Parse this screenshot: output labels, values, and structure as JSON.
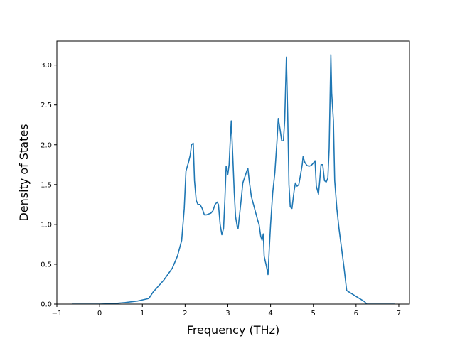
{
  "chart_data": {
    "type": "line",
    "title": "",
    "xlabel": "Frequency (THz)",
    "ylabel": "Density of States",
    "xlim": [
      -1,
      7.25
    ],
    "ylim": [
      0,
      3.3
    ],
    "x_ticks": [
      -1,
      0,
      1,
      2,
      3,
      4,
      5,
      6,
      7
    ],
    "x_tick_labels": [
      "−1",
      "0",
      "1",
      "2",
      "3",
      "4",
      "5",
      "6",
      "7"
    ],
    "y_ticks": [
      0.0,
      0.5,
      1.0,
      1.5,
      2.0,
      2.5,
      3.0
    ],
    "y_tick_labels": [
      "0.0",
      "0.5",
      "1.0",
      "1.5",
      "2.0",
      "2.5",
      "3.0"
    ],
    "grid": false,
    "legend": "none",
    "series": [
      {
        "color": "#1f77b4",
        "points": [
          [
            -0.65,
            0.0
          ],
          [
            0.0,
            0.0
          ],
          [
            0.3,
            0.005
          ],
          [
            0.6,
            0.02
          ],
          [
            0.9,
            0.04
          ],
          [
            1.15,
            0.07
          ],
          [
            1.25,
            0.15
          ],
          [
            1.5,
            0.3
          ],
          [
            1.7,
            0.45
          ],
          [
            1.82,
            0.6
          ],
          [
            1.92,
            0.8
          ],
          [
            1.98,
            1.2
          ],
          [
            2.02,
            1.67
          ],
          [
            2.08,
            1.78
          ],
          [
            2.12,
            1.87
          ],
          [
            2.15,
            2.0
          ],
          [
            2.19,
            2.02
          ],
          [
            2.22,
            1.55
          ],
          [
            2.26,
            1.3
          ],
          [
            2.3,
            1.25
          ],
          [
            2.35,
            1.25
          ],
          [
            2.4,
            1.2
          ],
          [
            2.45,
            1.12
          ],
          [
            2.5,
            1.12
          ],
          [
            2.6,
            1.14
          ],
          [
            2.65,
            1.17
          ],
          [
            2.7,
            1.25
          ],
          [
            2.75,
            1.28
          ],
          [
            2.78,
            1.25
          ],
          [
            2.82,
            1.0
          ],
          [
            2.86,
            0.87
          ],
          [
            2.9,
            0.95
          ],
          [
            2.93,
            1.3
          ],
          [
            2.96,
            1.73
          ],
          [
            3.0,
            1.63
          ],
          [
            3.03,
            1.75
          ],
          [
            3.06,
            2.1
          ],
          [
            3.08,
            2.3
          ],
          [
            3.12,
            1.8
          ],
          [
            3.15,
            1.4
          ],
          [
            3.18,
            1.1
          ],
          [
            3.22,
            0.97
          ],
          [
            3.24,
            0.95
          ],
          [
            3.28,
            1.15
          ],
          [
            3.32,
            1.35
          ],
          [
            3.35,
            1.52
          ],
          [
            3.4,
            1.6
          ],
          [
            3.45,
            1.68
          ],
          [
            3.47,
            1.7
          ],
          [
            3.5,
            1.55
          ],
          [
            3.55,
            1.35
          ],
          [
            3.6,
            1.25
          ],
          [
            3.65,
            1.15
          ],
          [
            3.7,
            1.05
          ],
          [
            3.73,
            1.0
          ],
          [
            3.77,
            0.85
          ],
          [
            3.8,
            0.8
          ],
          [
            3.83,
            0.88
          ],
          [
            3.85,
            0.6
          ],
          [
            3.9,
            0.48
          ],
          [
            3.94,
            0.37
          ],
          [
            3.97,
            0.7
          ],
          [
            4.0,
            1.0
          ],
          [
            4.05,
            1.4
          ],
          [
            4.1,
            1.65
          ],
          [
            4.15,
            2.05
          ],
          [
            4.18,
            2.33
          ],
          [
            4.22,
            2.2
          ],
          [
            4.26,
            2.05
          ],
          [
            4.3,
            2.05
          ],
          [
            4.33,
            2.3
          ],
          [
            4.37,
            3.1
          ],
          [
            4.4,
            2.4
          ],
          [
            4.43,
            1.5
          ],
          [
            4.46,
            1.22
          ],
          [
            4.5,
            1.2
          ],
          [
            4.55,
            1.42
          ],
          [
            4.58,
            1.52
          ],
          [
            4.62,
            1.48
          ],
          [
            4.66,
            1.5
          ],
          [
            4.7,
            1.62
          ],
          [
            4.74,
            1.75
          ],
          [
            4.76,
            1.85
          ],
          [
            4.8,
            1.78
          ],
          [
            4.85,
            1.74
          ],
          [
            4.9,
            1.73
          ],
          [
            4.95,
            1.74
          ],
          [
            5.0,
            1.77
          ],
          [
            5.04,
            1.8
          ],
          [
            5.07,
            1.48
          ],
          [
            5.12,
            1.38
          ],
          [
            5.15,
            1.55
          ],
          [
            5.18,
            1.75
          ],
          [
            5.22,
            1.75
          ],
          [
            5.26,
            1.55
          ],
          [
            5.3,
            1.53
          ],
          [
            5.34,
            1.58
          ],
          [
            5.37,
            1.95
          ],
          [
            5.41,
            3.13
          ],
          [
            5.43,
            2.65
          ],
          [
            5.47,
            2.3
          ],
          [
            5.5,
            1.55
          ],
          [
            5.55,
            1.2
          ],
          [
            5.6,
            0.95
          ],
          [
            5.66,
            0.7
          ],
          [
            5.72,
            0.45
          ],
          [
            5.78,
            0.17
          ],
          [
            5.9,
            0.13
          ],
          [
            6.05,
            0.08
          ],
          [
            6.2,
            0.03
          ],
          [
            6.25,
            0.0
          ],
          [
            6.5,
            0.0
          ],
          [
            6.9,
            0.0
          ]
        ]
      }
    ]
  }
}
